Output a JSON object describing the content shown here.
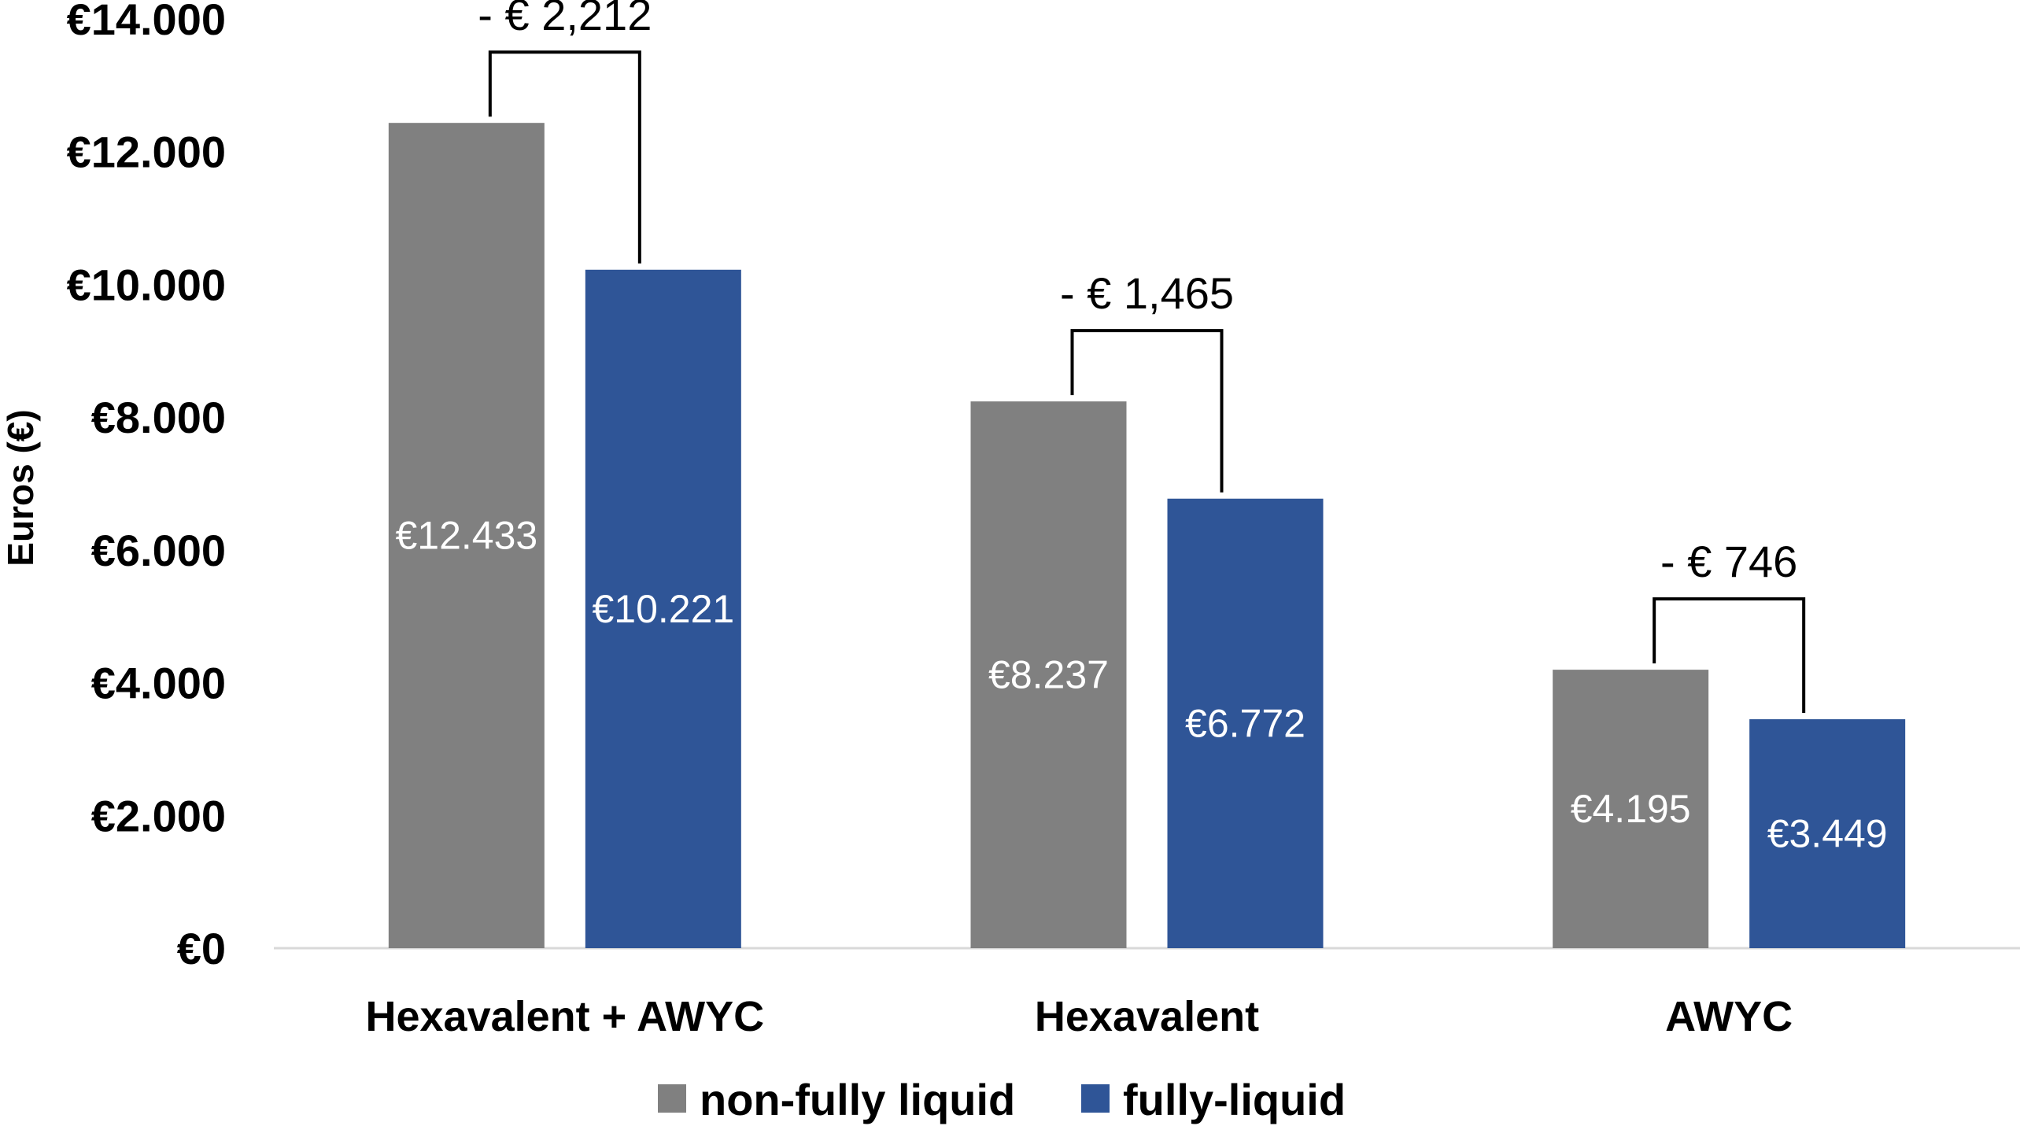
{
  "chart_data": {
    "type": "bar",
    "ylabel": "Euros (€)",
    "ylim": [
      0,
      14000
    ],
    "yticks": [
      0,
      2000,
      4000,
      6000,
      8000,
      10000,
      12000,
      14000
    ],
    "ytick_labels": [
      "€0",
      "€2.000",
      "€4.000",
      "€6.000",
      "€8.000",
      "€10.000",
      "€12.000",
      "€14.000"
    ],
    "categories": [
      "Hexavalent + AWYC",
      "Hexavalent",
      "AWYC"
    ],
    "series": [
      {
        "name": "non-fully liquid",
        "color": "#808080",
        "values": [
          12433,
          8237,
          4195
        ],
        "labels": [
          "€12.433",
          "€8.237",
          "€4.195"
        ]
      },
      {
        "name": "fully-liquid",
        "color": "#2F5597",
        "values": [
          10221,
          6772,
          3449
        ],
        "labels": [
          "€10.221",
          "€6.772",
          "€3.449"
        ]
      }
    ],
    "differences": [
      "- € 2,212",
      "- € 1,465",
      "- € 746"
    ],
    "legend_position": "bottom",
    "grid": false
  }
}
